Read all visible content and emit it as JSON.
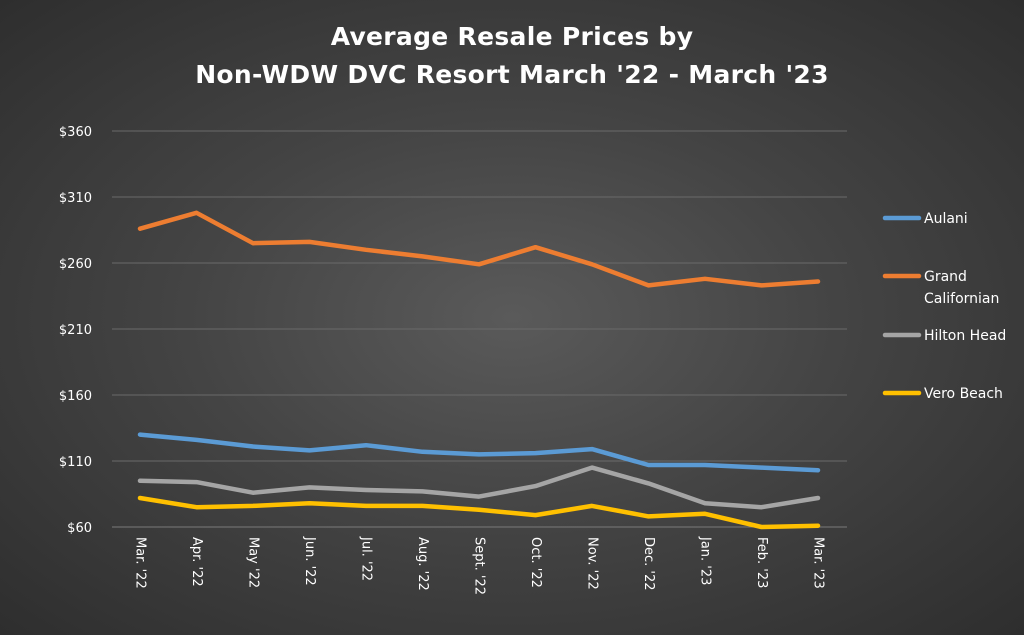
{
  "chart_data": {
    "type": "line",
    "title_line1": "Average Resale Prices by",
    "title_line2": "Non-WDW DVC Resort March '22 - March '23",
    "xlabel": "",
    "ylabel": "",
    "ylim": [
      60,
      360
    ],
    "yticks": [
      {
        "value": 360,
        "label": "$360"
      },
      {
        "value": 310,
        "label": "$310"
      },
      {
        "value": 260,
        "label": "$260"
      },
      {
        "value": 210,
        "label": "$210"
      },
      {
        "value": 160,
        "label": "$160"
      },
      {
        "value": 110,
        "label": "$110"
      },
      {
        "value": 60,
        "label": "$60"
      }
    ],
    "categories": [
      "Mar. '22",
      "Apr. '22",
      "May '22",
      "Jun. '22",
      "Jul. '22",
      "Aug. '22",
      "Sept. '22",
      "Oct. '22",
      "Nov. '22",
      "Dec. '22",
      "Jan. '23",
      "Feb. '23",
      "Mar. '23"
    ],
    "grid": true,
    "legend_position": "right",
    "series": [
      {
        "name": "Aulani",
        "legend_lines": [
          "Aulani"
        ],
        "color": "#5b9bd5",
        "values": [
          130,
          126,
          121,
          118,
          122,
          117,
          115,
          116,
          119,
          107,
          107,
          105,
          103
        ]
      },
      {
        "name": "Grand Californian",
        "legend_lines": [
          "Grand",
          "Californian"
        ],
        "color": "#ed7d31",
        "values": [
          286,
          298,
          275,
          276,
          270,
          265,
          259,
          272,
          259,
          243,
          248,
          243,
          246
        ]
      },
      {
        "name": "Hilton Head",
        "legend_lines": [
          "Hilton Head"
        ],
        "color": "#a5a5a5",
        "values": [
          95,
          94,
          86,
          90,
          88,
          87,
          83,
          91,
          105,
          93,
          78,
          75,
          82
        ]
      },
      {
        "name": "Vero Beach",
        "legend_lines": [
          "Vero Beach"
        ],
        "color": "#ffc000",
        "values": [
          82,
          75,
          76,
          78,
          76,
          76,
          73,
          69,
          76,
          68,
          70,
          60,
          61
        ]
      }
    ]
  }
}
